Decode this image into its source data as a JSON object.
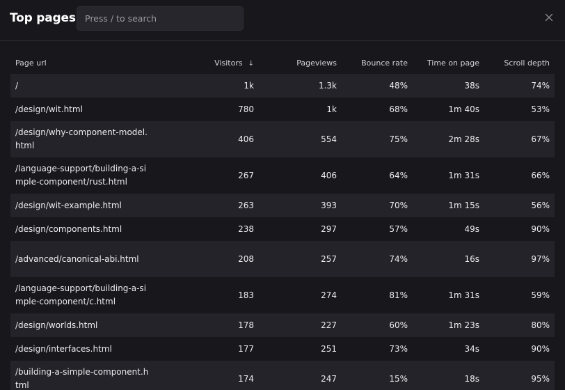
{
  "header": {
    "title": "Top pages",
    "search_placeholder": "Press / to search",
    "search_value": ""
  },
  "table": {
    "columns": {
      "url": "Page url",
      "visitors": "Visitors",
      "sort_indicator": "↓",
      "pageviews": "Pageviews",
      "bounce_rate": "Bounce rate",
      "time_on_page": "Time on page",
      "scroll_depth": "Scroll depth"
    },
    "rows": [
      {
        "url": "/",
        "visitors": "1k",
        "pageviews": "1.3k",
        "bounce_rate": "48%",
        "time_on_page": "38s",
        "scroll_depth": "74%"
      },
      {
        "url": "/design/wit.html",
        "visitors": "780",
        "pageviews": "1k",
        "bounce_rate": "68%",
        "time_on_page": "1m 40s",
        "scroll_depth": "53%"
      },
      {
        "url": "/design/why-component-model.html",
        "visitors": "406",
        "pageviews": "554",
        "bounce_rate": "75%",
        "time_on_page": "2m 28s",
        "scroll_depth": "67%"
      },
      {
        "url": "/language-support/building-a-simple-component/rust.html",
        "visitors": "267",
        "pageviews": "406",
        "bounce_rate": "64%",
        "time_on_page": "1m 31s",
        "scroll_depth": "66%"
      },
      {
        "url": "/design/wit-example.html",
        "visitors": "263",
        "pageviews": "393",
        "bounce_rate": "70%",
        "time_on_page": "1m 15s",
        "scroll_depth": "56%"
      },
      {
        "url": "/design/components.html",
        "visitors": "238",
        "pageviews": "297",
        "bounce_rate": "57%",
        "time_on_page": "49s",
        "scroll_depth": "90%"
      },
      {
        "url": "/advanced/canonical-abi.html",
        "visitors": "208",
        "pageviews": "257",
        "bounce_rate": "74%",
        "time_on_page": "16s",
        "scroll_depth": "97%"
      },
      {
        "url": "/language-support/building-a-simple-component/c.html",
        "visitors": "183",
        "pageviews": "274",
        "bounce_rate": "81%",
        "time_on_page": "1m 31s",
        "scroll_depth": "59%"
      },
      {
        "url": "/design/worlds.html",
        "visitors": "178",
        "pageviews": "227",
        "bounce_rate": "60%",
        "time_on_page": "1m 23s",
        "scroll_depth": "80%"
      },
      {
        "url": "/design/interfaces.html",
        "visitors": "177",
        "pageviews": "251",
        "bounce_rate": "73%",
        "time_on_page": "34s",
        "scroll_depth": "90%"
      },
      {
        "url": "/building-a-simple-component.html",
        "visitors": "174",
        "pageviews": "247",
        "bounce_rate": "15%",
        "time_on_page": "18s",
        "scroll_depth": "95%"
      }
    ]
  },
  "icons": {
    "close": "close-icon"
  },
  "colors": {
    "background": "#18171c",
    "row_alt": "#242329",
    "search_bg": "#27262c",
    "text": "#e4e4e7"
  }
}
